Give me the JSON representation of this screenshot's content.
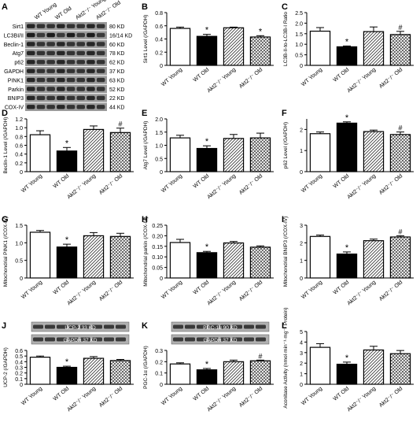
{
  "groups": [
    "WT Young",
    "WT Old",
    "Akt2⁻/⁻ Young",
    "Akt2⁻/⁻ Old"
  ],
  "blot_A": {
    "panel": "A",
    "proteins": [
      {
        "name": "Sirt1",
        "size": "80 KD"
      },
      {
        "name": "LC3BI/II",
        "size": "16/14 KD"
      },
      {
        "name": "Beclin-1",
        "size": "60 KD"
      },
      {
        "name": "Atg7",
        "size": "78 KD"
      },
      {
        "name": "p62",
        "size": "62 KD"
      },
      {
        "name": "GAPDH",
        "size": "37 KD"
      },
      {
        "name": "PINK1",
        "size": "63 KD"
      },
      {
        "name": "Parkin",
        "size": "52 KD"
      },
      {
        "name": "BNIP3",
        "size": "22 KD"
      },
      {
        "name": "COX-IV",
        "size": "44 KD"
      }
    ]
  },
  "colors": {
    "wt_young": "#ffffff",
    "wt_old": "#000000",
    "hatch": "#333333",
    "blot": "#2b2b2b"
  },
  "chart_data": [
    {
      "panel": "B",
      "type": "bar",
      "ylabel": "Sirt1 Level (/GAPDH)",
      "ylim": [
        0,
        0.8
      ],
      "yticks": [
        0,
        0.2,
        0.4,
        0.6,
        0.8
      ],
      "tick_labels": [
        "0",
        "0.2",
        "0.4",
        "0.6",
        "0.8"
      ],
      "values": [
        0.56,
        0.44,
        0.57,
        0.43
      ],
      "errors": [
        0.02,
        0.03,
        0.01,
        0.02
      ],
      "marks": [
        "",
        "*",
        "",
        "*"
      ],
      "blot": []
    },
    {
      "panel": "C",
      "type": "bar",
      "ylabel": "LC3B-II-to-LC3B-I Ratio",
      "ylim": [
        0,
        2.5
      ],
      "yticks": [
        0,
        0.5,
        1,
        1.5,
        2,
        2.5
      ],
      "tick_labels": [
        "0",
        "0.5",
        "1.0",
        "1.5",
        "2.0",
        "2.5"
      ],
      "values": [
        1.62,
        0.88,
        1.6,
        1.46
      ],
      "errors": [
        0.17,
        0.04,
        0.22,
        0.15
      ],
      "marks": [
        "",
        "*",
        "",
        "#"
      ],
      "blot": []
    },
    {
      "panel": "D",
      "type": "bar",
      "ylabel": "Beclin-1 Level (/GAPDH)",
      "ylim": [
        0,
        1.2
      ],
      "yticks": [
        0,
        0.2,
        0.4,
        0.6,
        0.8,
        1,
        1.2
      ],
      "tick_labels": [
        "0",
        "0.2",
        "0.4",
        "0.6",
        "0.8",
        "1.0",
        "1.2"
      ],
      "values": [
        0.84,
        0.47,
        0.96,
        0.89
      ],
      "errors": [
        0.09,
        0.08,
        0.08,
        0.1
      ],
      "marks": [
        "",
        "*",
        "",
        "#"
      ],
      "blot": []
    },
    {
      "panel": "E",
      "type": "bar",
      "ylabel": "Atg7 Level (/GAPDH)",
      "ylim": [
        0,
        2
      ],
      "yticks": [
        0,
        0.5,
        1,
        1.5,
        2
      ],
      "tick_labels": [
        "0",
        "0.5",
        "1.0",
        "1.5",
        "2.0"
      ],
      "values": [
        1.28,
        0.88,
        1.26,
        1.28
      ],
      "errors": [
        0.1,
        0.1,
        0.15,
        0.18
      ],
      "marks": [
        "",
        "*",
        "",
        ""
      ],
      "blot": []
    },
    {
      "panel": "F",
      "type": "bar",
      "ylabel": "p62 Level (/GAPDH)",
      "ylim": [
        0,
        2.5
      ],
      "yticks": [
        0,
        1,
        2
      ],
      "tick_labels": [
        "0",
        "1",
        "2"
      ],
      "values": [
        1.8,
        2.3,
        1.9,
        1.76
      ],
      "errors": [
        0.08,
        0.06,
        0.07,
        0.12
      ],
      "marks": [
        "",
        "*",
        "",
        "#"
      ],
      "blot": []
    },
    {
      "panel": "G",
      "type": "bar",
      "ylabel": "Mitochondrial PINK1 (/COX-IV)",
      "ylim": [
        0,
        1.5
      ],
      "yticks": [
        0,
        0.5,
        1,
        1.5
      ],
      "tick_labels": [
        "0",
        "0.5",
        "1.0",
        "1.5"
      ],
      "values": [
        1.3,
        0.88,
        1.2,
        1.18
      ],
      "errors": [
        0.05,
        0.08,
        0.09,
        0.09
      ],
      "marks": [
        "",
        "*",
        "",
        ""
      ],
      "blot": []
    },
    {
      "panel": "H",
      "type": "bar",
      "ylabel": "Mitochondrial parkin (/COX-IV)",
      "ylim": [
        0,
        0.25
      ],
      "yticks": [
        0,
        0.05,
        0.1,
        0.15,
        0.2,
        0.25
      ],
      "tick_labels": [
        "0",
        "0.05",
        "0.10",
        "0.15",
        "0.20",
        "0.25"
      ],
      "values": [
        0.168,
        0.12,
        0.166,
        0.146
      ],
      "errors": [
        0.015,
        0.006,
        0.007,
        0.006
      ],
      "marks": [
        "",
        "*",
        "",
        ""
      ],
      "blot": []
    },
    {
      "panel": "I",
      "type": "bar",
      "ylabel": "Mitochondrial BNIP3 (/COX-IV)",
      "ylim": [
        0,
        3
      ],
      "yticks": [
        0,
        1,
        2,
        3
      ],
      "tick_labels": [
        "0",
        "1",
        "2",
        "3"
      ],
      "values": [
        2.36,
        1.36,
        2.12,
        2.33
      ],
      "errors": [
        0.08,
        0.12,
        0.09,
        0.07
      ],
      "marks": [
        "",
        "*",
        "",
        "#"
      ],
      "blot": []
    },
    {
      "panel": "J",
      "type": "bar",
      "ylabel": "UCP-2 (/GAPDH)",
      "ylim": [
        0,
        0.6
      ],
      "yticks": [
        0,
        0.1,
        0.2,
        0.3,
        0.4,
        0.5,
        0.6
      ],
      "tick_labels": [
        "0",
        "0.1",
        "0.2",
        "0.3",
        "0.4",
        "0.5",
        "0.6"
      ],
      "values": [
        0.48,
        0.3,
        0.46,
        0.42
      ],
      "errors": [
        0.02,
        0.02,
        0.03,
        0.02
      ],
      "marks": [
        "",
        "*",
        "",
        ""
      ],
      "blot": [
        {
          "label": "UCP-2 33 KD"
        },
        {
          "label": "GAPDH 37 KD"
        }
      ]
    },
    {
      "panel": "K",
      "type": "bar",
      "ylabel": "PGC-1α (/GAPDH)",
      "ylim": [
        0,
        0.3
      ],
      "yticks": [
        0,
        0.1,
        0.2,
        0.3
      ],
      "tick_labels": [
        "0",
        "0.1",
        "0.2",
        "0.3"
      ],
      "values": [
        0.18,
        0.128,
        0.2,
        0.208
      ],
      "errors": [
        0.01,
        0.012,
        0.014,
        0.006
      ],
      "marks": [
        "",
        "*",
        "",
        "#"
      ],
      "blot": [
        {
          "label": "PGC-1α 90 KD"
        },
        {
          "label": "GAPDH 37 KD"
        }
      ]
    },
    {
      "panel": "L",
      "type": "bar",
      "ylabel": "Aconitase Activity (nmol·min⁻¹·mg⁻¹ Protein)",
      "ylim": [
        0,
        5
      ],
      "yticks": [
        0,
        1,
        2,
        3,
        4,
        5
      ],
      "tick_labels": [
        "0",
        "1",
        "2",
        "3",
        "4",
        "5"
      ],
      "values": [
        3.5,
        1.9,
        3.25,
        2.9
      ],
      "errors": [
        0.35,
        0.2,
        0.35,
        0.3
      ],
      "marks": [
        "",
        "*",
        "",
        ""
      ],
      "blot": []
    }
  ]
}
